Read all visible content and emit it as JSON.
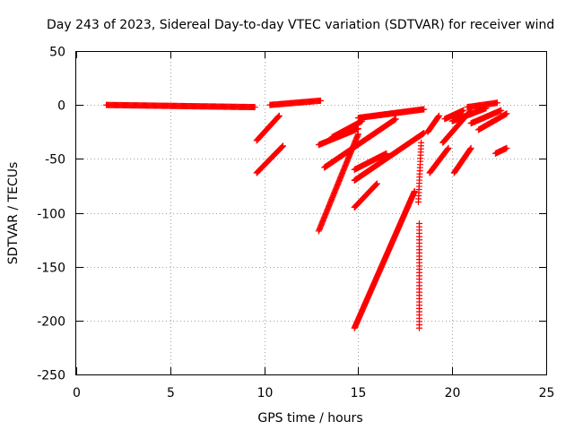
{
  "chart_data": {
    "type": "scatter",
    "title": "Day 243 of 2023, Sidereal Day-to-day VTEC variation (SDTVAR) for receiver wind",
    "xlabel": "GPS time / hours",
    "ylabel": "SDTVAR / TECUs",
    "xlim": [
      0,
      25
    ],
    "ylim": [
      -250,
      50
    ],
    "xticks": [
      0,
      5,
      10,
      15,
      20,
      25
    ],
    "yticks": [
      50,
      0,
      -50,
      -100,
      -150,
      -200,
      -250
    ],
    "grid": true,
    "marker": "plus",
    "color": "#ff0000",
    "series": [
      {
        "name": "flat-start",
        "x0": 1.6,
        "x1": 9.5,
        "y0": 0,
        "y1": -2,
        "step": 0.05
      },
      {
        "name": "flat-mid",
        "x0": 10.3,
        "x1": 13.0,
        "y0": 0,
        "y1": 4,
        "step": 0.05
      },
      {
        "name": "track-a",
        "x0": 9.6,
        "x1": 10.8,
        "y0": -33,
        "y1": -10,
        "step": 0.03
      },
      {
        "name": "track-b",
        "x0": 9.6,
        "x1": 11.0,
        "y0": -63,
        "y1": -38,
        "step": 0.03
      },
      {
        "name": "track-c",
        "x0": 12.9,
        "x1": 15.0,
        "y0": -117,
        "y1": -27,
        "step": 0.025
      },
      {
        "name": "track-d",
        "x0": 13.2,
        "x1": 17.0,
        "y0": -58,
        "y1": -13,
        "step": 0.03
      },
      {
        "name": "track-e",
        "x0": 13.6,
        "x1": 15.2,
        "y0": -30,
        "y1": -15,
        "step": 0.04
      },
      {
        "name": "track-f",
        "x0": 12.9,
        "x1": 15.0,
        "y0": -37,
        "y1": -22,
        "step": 0.04
      },
      {
        "name": "track-g",
        "x0": 14.8,
        "x1": 16.0,
        "y0": -95,
        "y1": -73,
        "step": 0.03
      },
      {
        "name": "track-h",
        "x0": 14.8,
        "x1": 18.0,
        "y0": -207,
        "y1": -80,
        "step": 0.02
      },
      {
        "name": "track-i",
        "x0": 14.8,
        "x1": 16.5,
        "y0": -60,
        "y1": -45,
        "step": 0.04
      },
      {
        "name": "track-j",
        "x0": 14.8,
        "x1": 18.5,
        "y0": -70,
        "y1": -26,
        "step": 0.03
      },
      {
        "name": "track-k",
        "x0": 15.0,
        "x1": 18.5,
        "y0": -12,
        "y1": -4,
        "step": 0.04
      },
      {
        "name": "track-l",
        "x0": 18.2,
        "x1": 18.35,
        "y0": -90,
        "y1": -35,
        "step": 0.008
      },
      {
        "name": "vertical-m",
        "x0": 18.25,
        "x1": 18.25,
        "y0": -207,
        "y1": -110,
        "step": 3
      },
      {
        "name": "track-n",
        "x0": 18.7,
        "x1": 19.3,
        "y0": -25,
        "y1": -10,
        "step": 0.03
      },
      {
        "name": "track-o",
        "x0": 18.8,
        "x1": 19.8,
        "y0": -63,
        "y1": -40,
        "step": 0.03
      },
      {
        "name": "track-p",
        "x0": 19.5,
        "x1": 21.0,
        "y0": -35,
        "y1": -5,
        "step": 0.03
      },
      {
        "name": "track-q",
        "x0": 19.6,
        "x1": 20.6,
        "y0": -13,
        "y1": -5,
        "step": 0.04
      },
      {
        "name": "track-r",
        "x0": 20.1,
        "x1": 21.0,
        "y0": -63,
        "y1": -40,
        "step": 0.03
      },
      {
        "name": "track-s",
        "x0": 20.0,
        "x1": 21.8,
        "y0": -15,
        "y1": -3,
        "step": 0.04
      },
      {
        "name": "track-t",
        "x0": 21.0,
        "x1": 22.6,
        "y0": -17,
        "y1": -5,
        "step": 0.04
      },
      {
        "name": "track-u",
        "x0": 21.4,
        "x1": 22.9,
        "y0": -23,
        "y1": -8,
        "step": 0.04
      },
      {
        "name": "track-v",
        "x0": 22.3,
        "x1": 22.9,
        "y0": -45,
        "y1": -40,
        "step": 0.04
      },
      {
        "name": "flat-tail",
        "x0": 20.8,
        "x1": 22.4,
        "y0": -2,
        "y1": 2,
        "step": 0.05
      }
    ]
  }
}
